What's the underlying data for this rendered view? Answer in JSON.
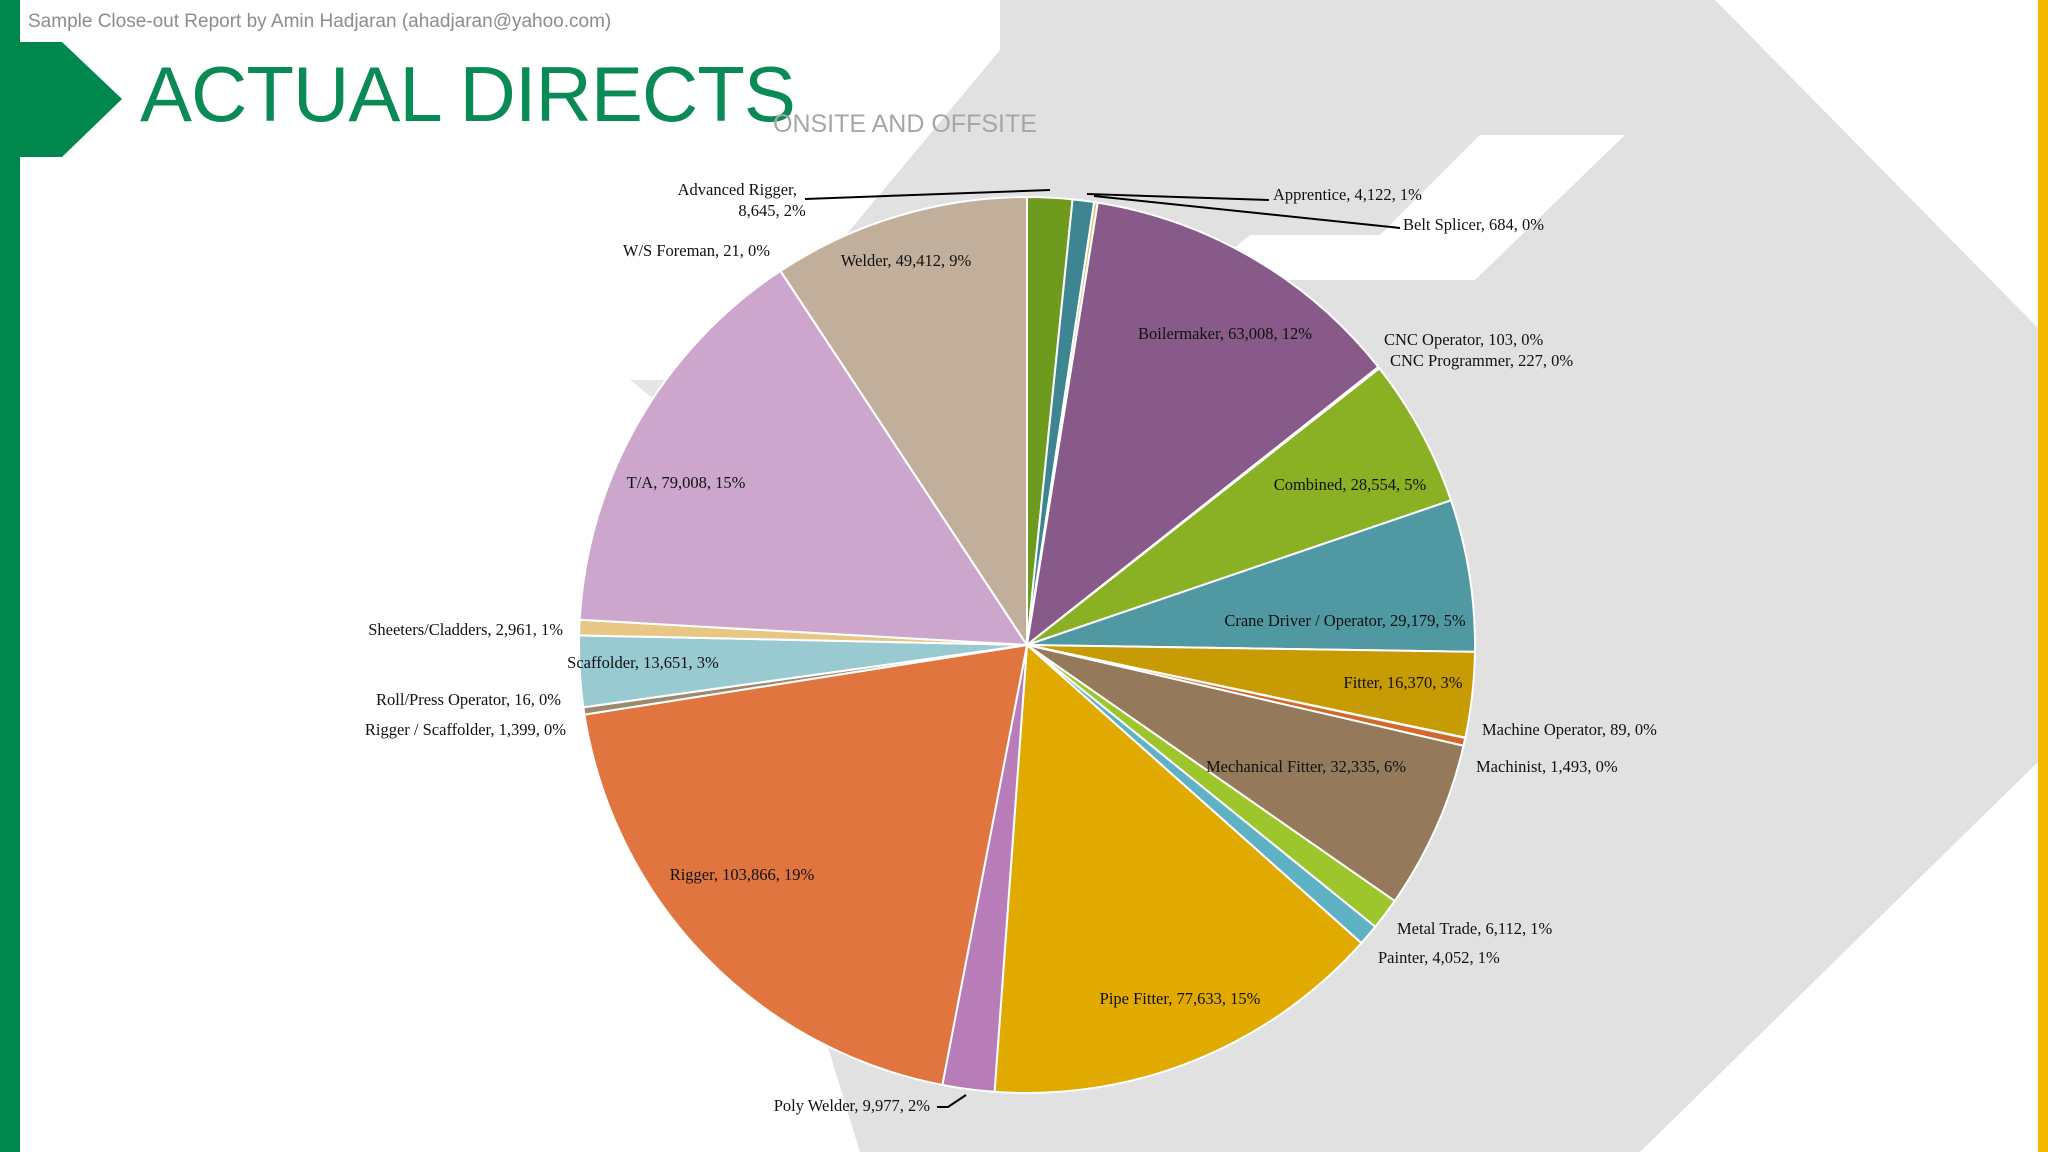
{
  "header": {
    "note": "Sample Close-out Report by Amin Hadjaran (ahadjaran@yahoo.com)",
    "title": "ACTUAL DIRECTS",
    "subtitle": "ONSITE AND OFFSITE"
  },
  "colors": {
    "brand_green": "#00874d",
    "title_green": "#0a8a55",
    "accent_yellow": "#f5b800",
    "background_shape": "#e1e1e1"
  },
  "chart_data": {
    "type": "pie",
    "title": "",
    "start_angle_deg": 0,
    "direction": "clockwise",
    "slices": [
      {
        "name": "Advanced Rigger",
        "value": 8645,
        "percent": "2%",
        "label": "Advanced Rigger, 8,645, 2%",
        "color": "#6e9a1e"
      },
      {
        "name": "Apprentice",
        "value": 4122,
        "percent": "1%",
        "label": "Apprentice, 4,122, 1%",
        "color": "#3d8591"
      },
      {
        "name": "Belt Splicer",
        "value": 684,
        "percent": "0%",
        "label": "Belt Splicer, 684, 0%",
        "color": "#e3c36a"
      },
      {
        "name": "Boilermaker",
        "value": 63008,
        "percent": "12%",
        "label": "Boilermaker, 63,008, 12%",
        "color": "#875a89"
      },
      {
        "name": "CNC Operator",
        "value": 103,
        "percent": "0%",
        "label": "CNC Operator, 103, 0%",
        "color": "#6a4a78"
      },
      {
        "name": "CNC Programmer",
        "value": 227,
        "percent": "0%",
        "label": "CNC Programmer, 227, 0%",
        "color": "#5a8a2a"
      },
      {
        "name": "Combined",
        "value": 28554,
        "percent": "5%",
        "label": "Combined, 28,554, 5%",
        "color": "#8ab023"
      },
      {
        "name": "Crane Driver / Operator",
        "value": 29179,
        "percent": "5%",
        "label": "Crane Driver / Operator, 29,179, 5%",
        "color": "#5099a3"
      },
      {
        "name": "Fitter",
        "value": 16370,
        "percent": "3%",
        "label": "Fitter, 16,370, 3%",
        "color": "#c69b03"
      },
      {
        "name": "Machine Operator",
        "value": 89,
        "percent": "0%",
        "label": "Machine Operator, 89, 0%",
        "color": "#b05a2a"
      },
      {
        "name": "Machinist",
        "value": 1493,
        "percent": "0%",
        "label": "Machinist, 1,493, 0%",
        "color": "#d2682c"
      },
      {
        "name": "Mechanical Fitter",
        "value": 32335,
        "percent": "6%",
        "label": "Mechanical Fitter, 32,335, 6%",
        "color": "#947a5a"
      },
      {
        "name": "Metal Trade",
        "value": 6112,
        "percent": "1%",
        "label": "Metal Trade, 6,112, 1%",
        "color": "#9cc62b"
      },
      {
        "name": "Painter",
        "value": 4052,
        "percent": "1%",
        "label": "Painter, 4,052, 1%",
        "color": "#5fb2c4"
      },
      {
        "name": "Pipe Fitter",
        "value": 77633,
        "percent": "15%",
        "label": "Pipe Fitter, 77,633, 15%",
        "color": "#e1aa00"
      },
      {
        "name": "Poly Welder",
        "value": 9977,
        "percent": "2%",
        "label": "Poly Welder, 9,977, 2%",
        "color": "#b87cb8"
      },
      {
        "name": "Rigger",
        "value": 103866,
        "percent": "19%",
        "label": "Rigger, 103,866, 19%",
        "color": "#e07540"
      },
      {
        "name": "Rigger / Scaffolder",
        "value": 1399,
        "percent": "0%",
        "label": "Rigger / Scaffolder, 1,399, 0%",
        "color": "#9b8a6e"
      },
      {
        "name": "Roll/Press Operator",
        "value": 16,
        "percent": "0%",
        "label": "Roll/Press Operator, 16, 0%",
        "color": "#a87a4a"
      },
      {
        "name": "Scaffolder",
        "value": 13651,
        "percent": "3%",
        "label": "Scaffolder, 13,651, 3%",
        "color": "#99c9d1"
      },
      {
        "name": "Sheeters/Cladders",
        "value": 2961,
        "percent": "1%",
        "label": "Sheeters/Cladders, 2,961, 1%",
        "color": "#e8c684"
      },
      {
        "name": "T/A",
        "value": 79008,
        "percent": "15%",
        "label": "T/A, 79,008, 15%",
        "color": "#cca6cc"
      },
      {
        "name": "W/S Foreman",
        "value": 21,
        "percent": "0%",
        "label": "W/S Foreman, 21, 0%",
        "color": "#a08a70"
      },
      {
        "name": "Welder",
        "value": 49412,
        "percent": "9%",
        "label": "Welder, 49,412, 9%",
        "color": "#c1af9c"
      }
    ]
  }
}
